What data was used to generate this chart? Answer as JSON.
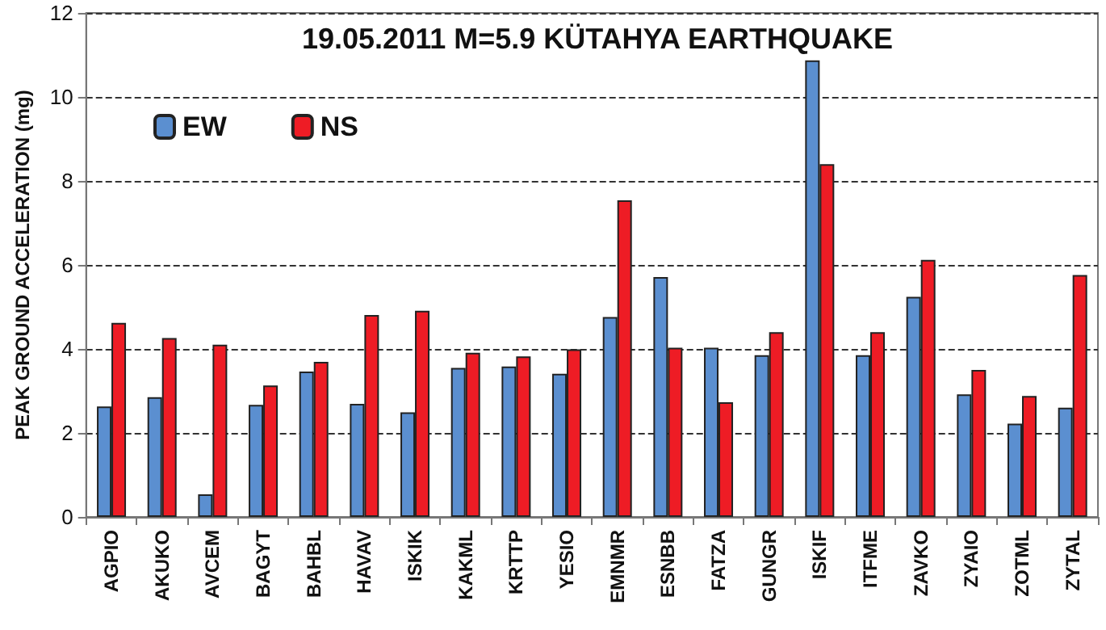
{
  "chart_data": {
    "type": "bar",
    "title": "19.05.2011 M=5.9 KÜTAHYA EARTHQUAKE",
    "ylabel": "PEAK GROUND ACCELERATION (mg)",
    "categories": [
      "AGPIO",
      "AKUKO",
      "AVCEM",
      "BAGYT",
      "BAHBL",
      "HAVAV",
      "ISKIK",
      "KAKML",
      "KRTTP",
      "YESIO",
      "EMNMR",
      "ESNBB",
      "FATZA",
      "GUNGR",
      "ISKIF",
      "ITFME",
      "ZAVKO",
      "ZYAIO",
      "ZOTML",
      "ZYTAL"
    ],
    "series": [
      {
        "name": "EW",
        "color": "#5b8fd0",
        "values": [
          2.63,
          2.85,
          0.54,
          2.67,
          3.46,
          2.69,
          2.49,
          3.55,
          3.58,
          3.41,
          4.76,
          5.71,
          4.03,
          3.85,
          10.87,
          3.85,
          5.24,
          2.92,
          2.22,
          2.6
        ]
      },
      {
        "name": "NS",
        "color": "#ee1c25",
        "values": [
          4.62,
          4.26,
          4.1,
          3.13,
          3.69,
          4.81,
          4.91,
          3.91,
          3.82,
          3.99,
          7.54,
          4.03,
          2.73,
          4.4,
          8.4,
          4.4,
          6.12,
          3.5,
          2.88,
          5.76
        ]
      }
    ],
    "ylim": [
      0,
      12
    ],
    "yticks": [
      0,
      2,
      4,
      6,
      8,
      10,
      12
    ],
    "grid": "y",
    "legend": "top left"
  }
}
